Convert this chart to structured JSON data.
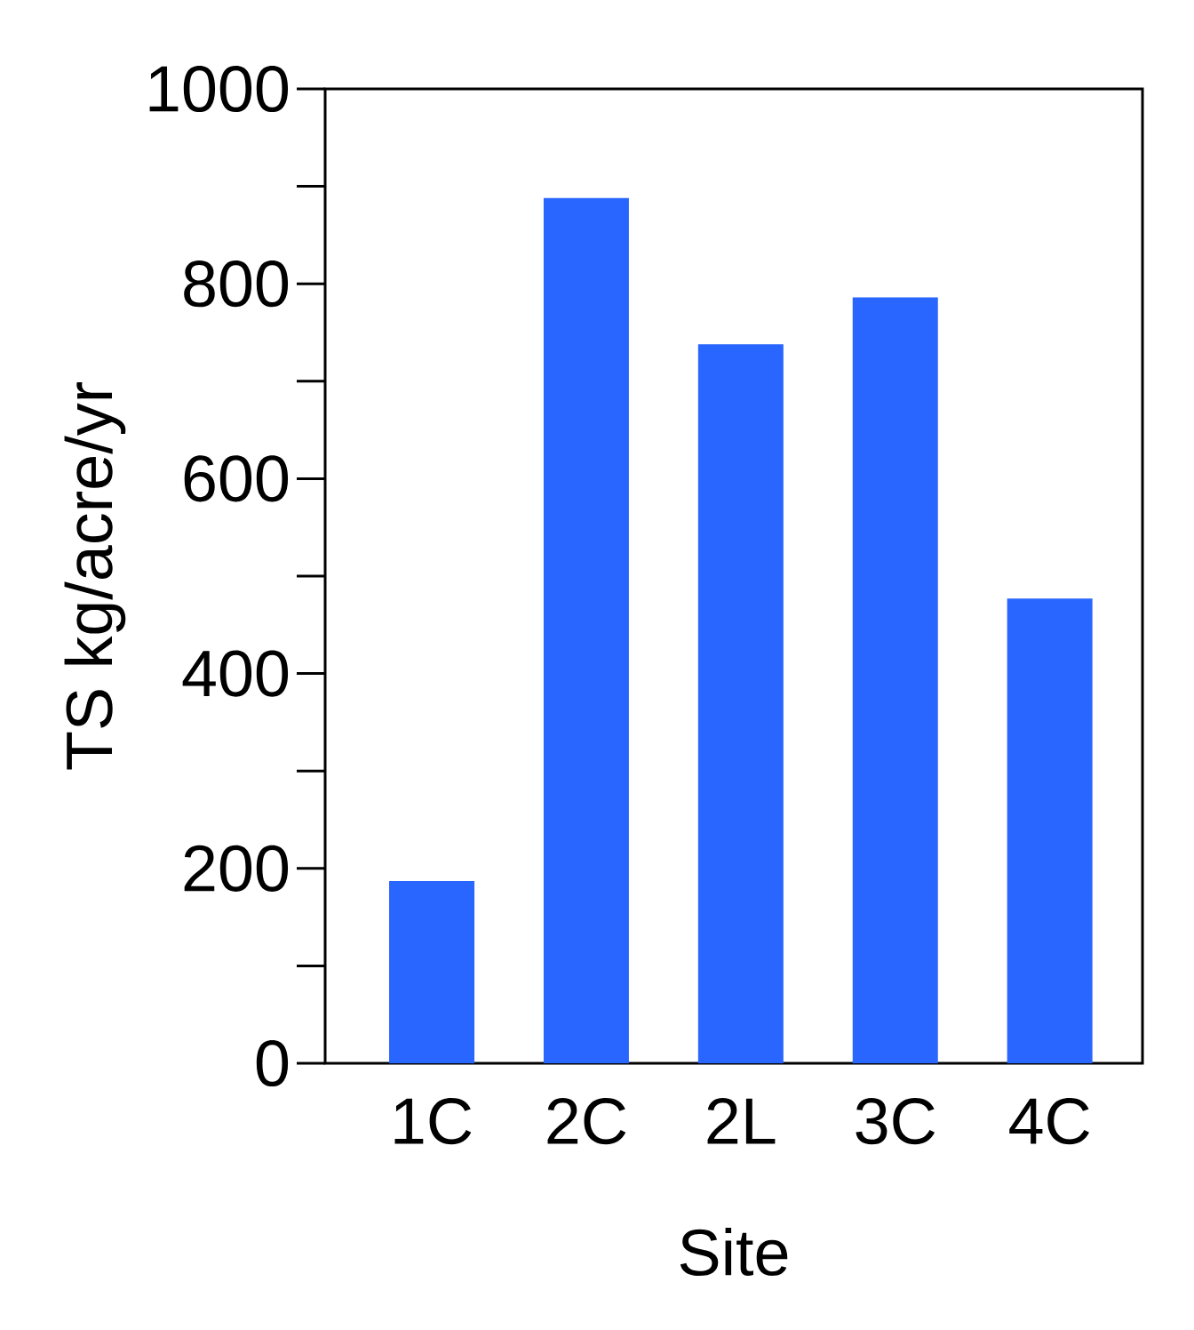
{
  "chart_data": {
    "type": "bar",
    "xlabel": "Site",
    "ylabel": "TS kg/acre/yr",
    "categories": [
      "1C",
      "2C",
      "2L",
      "3C",
      "4C"
    ],
    "values": [
      187,
      888,
      738,
      786,
      477
    ],
    "color": "#2966ff",
    "ylim": [
      0,
      1000
    ],
    "yticks": [
      0,
      {
        "value": 100,
        "label": null
      },
      200,
      {
        "value": 300,
        "label": null
      },
      400,
      {
        "value": 500,
        "label": null
      },
      600,
      {
        "value": 700,
        "label": null
      },
      800,
      {
        "value": 900,
        "label": null
      },
      1000
    ],
    "grid": false
  }
}
